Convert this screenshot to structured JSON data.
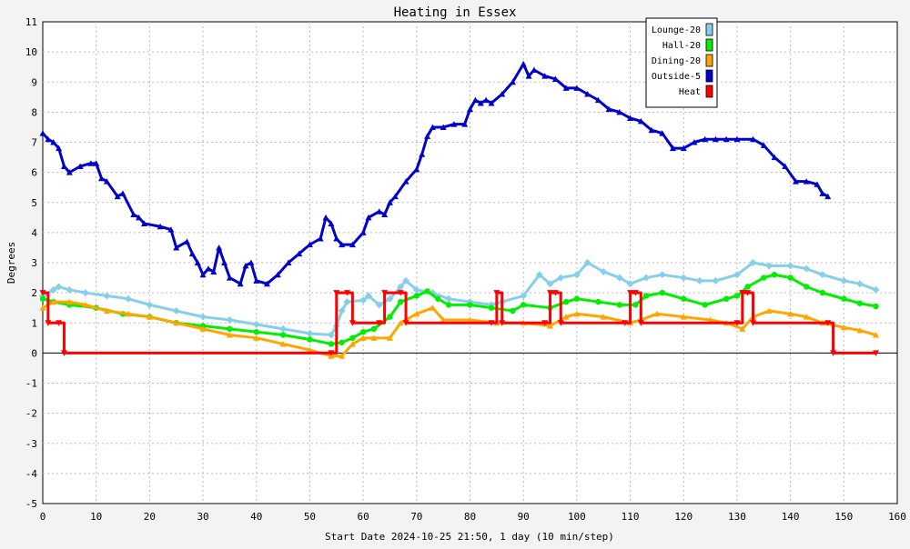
{
  "chart_data": {
    "type": "line",
    "title": "Heating in Essex",
    "xlabel": "Start Date 2024-10-25 21:50, 1 day (10 min/step)",
    "ylabel": "Degrees",
    "xlim": [
      0,
      160
    ],
    "ylim": [
      -5,
      11
    ],
    "x_ticks": [
      "0",
      "10",
      "20",
      "30",
      "40",
      "50",
      "60",
      "70",
      "80",
      "90",
      "100",
      "110",
      "120",
      "130",
      "140",
      "150",
      "160"
    ],
    "y_ticks": [
      "-5",
      "-4",
      "-3",
      "-2",
      "-1",
      "0",
      "1",
      "2",
      "3",
      "4",
      "5",
      "6",
      "7",
      "8",
      "9",
      "10",
      "11"
    ],
    "grid": true,
    "legend_position": "top-right",
    "colors": {
      "background": "#f3f3f3",
      "plot_background": "#ffffff",
      "grid": "#bbbbbb",
      "zero_line": "#000000"
    },
    "series": [
      {
        "name": "Lounge-20",
        "color": "#87ceeb",
        "marker": "diamond",
        "points": [
          [
            0,
            1.9
          ],
          [
            2,
            2.1
          ],
          [
            3,
            2.2
          ],
          [
            5,
            2.1
          ],
          [
            8,
            2.0
          ],
          [
            12,
            1.9
          ],
          [
            16,
            1.8
          ],
          [
            20,
            1.6
          ],
          [
            25,
            1.4
          ],
          [
            30,
            1.2
          ],
          [
            35,
            1.1
          ],
          [
            40,
            0.95
          ],
          [
            45,
            0.8
          ],
          [
            50,
            0.65
          ],
          [
            54,
            0.6
          ],
          [
            55,
            0.9
          ],
          [
            56,
            1.4
          ],
          [
            57,
            1.7
          ],
          [
            60,
            1.75
          ],
          [
            61,
            1.9
          ],
          [
            63,
            1.6
          ],
          [
            65,
            1.8
          ],
          [
            67,
            2.2
          ],
          [
            68,
            2.4
          ],
          [
            70,
            2.1
          ],
          [
            73,
            2.0
          ],
          [
            76,
            1.8
          ],
          [
            80,
            1.7
          ],
          [
            84,
            1.6
          ],
          [
            86,
            1.7
          ],
          [
            90,
            1.9
          ],
          [
            93,
            2.6
          ],
          [
            95,
            2.3
          ],
          [
            97,
            2.5
          ],
          [
            100,
            2.6
          ],
          [
            102,
            3.0
          ],
          [
            105,
            2.7
          ],
          [
            108,
            2.5
          ],
          [
            110,
            2.3
          ],
          [
            113,
            2.5
          ],
          [
            116,
            2.6
          ],
          [
            120,
            2.5
          ],
          [
            123,
            2.4
          ],
          [
            126,
            2.4
          ],
          [
            130,
            2.6
          ],
          [
            133,
            3.0
          ],
          [
            136,
            2.9
          ],
          [
            140,
            2.9
          ],
          [
            143,
            2.8
          ],
          [
            146,
            2.6
          ],
          [
            150,
            2.4
          ],
          [
            153,
            2.3
          ],
          [
            156,
            2.1
          ]
        ]
      },
      {
        "name": "Hall-20",
        "color": "#00ee00",
        "marker": "circle",
        "points": [
          [
            0,
            1.8
          ],
          [
            2,
            1.7
          ],
          [
            5,
            1.6
          ],
          [
            10,
            1.5
          ],
          [
            15,
            1.3
          ],
          [
            20,
            1.2
          ],
          [
            25,
            1.0
          ],
          [
            30,
            0.9
          ],
          [
            35,
            0.8
          ],
          [
            40,
            0.7
          ],
          [
            45,
            0.6
          ],
          [
            50,
            0.45
          ],
          [
            54,
            0.3
          ],
          [
            56,
            0.35
          ],
          [
            58,
            0.5
          ],
          [
            60,
            0.7
          ],
          [
            62,
            0.8
          ],
          [
            65,
            1.2
          ],
          [
            67,
            1.7
          ],
          [
            70,
            1.9
          ],
          [
            72,
            2.05
          ],
          [
            74,
            1.8
          ],
          [
            76,
            1.6
          ],
          [
            80,
            1.6
          ],
          [
            84,
            1.5
          ],
          [
            88,
            1.4
          ],
          [
            90,
            1.6
          ],
          [
            95,
            1.5
          ],
          [
            98,
            1.7
          ],
          [
            100,
            1.8
          ],
          [
            104,
            1.7
          ],
          [
            108,
            1.6
          ],
          [
            111,
            1.6
          ],
          [
            113,
            1.9
          ],
          [
            116,
            2.0
          ],
          [
            120,
            1.8
          ],
          [
            124,
            1.6
          ],
          [
            128,
            1.8
          ],
          [
            130,
            1.9
          ],
          [
            132,
            2.2
          ],
          [
            135,
            2.5
          ],
          [
            137,
            2.6
          ],
          [
            140,
            2.5
          ],
          [
            143,
            2.2
          ],
          [
            146,
            2.0
          ],
          [
            150,
            1.8
          ],
          [
            153,
            1.65
          ],
          [
            156,
            1.55
          ]
        ]
      },
      {
        "name": "Dining-20",
        "color": "#ffa500",
        "marker": "triangle",
        "points": [
          [
            0,
            1.5
          ],
          [
            2,
            1.7
          ],
          [
            5,
            1.7
          ],
          [
            8,
            1.6
          ],
          [
            12,
            1.4
          ],
          [
            16,
            1.3
          ],
          [
            20,
            1.2
          ],
          [
            25,
            1.0
          ],
          [
            30,
            0.8
          ],
          [
            35,
            0.6
          ],
          [
            40,
            0.5
          ],
          [
            45,
            0.3
          ],
          [
            50,
            0.1
          ],
          [
            54,
            -0.1
          ],
          [
            56,
            -0.1
          ],
          [
            58,
            0.3
          ],
          [
            60,
            0.5
          ],
          [
            62,
            0.5
          ],
          [
            65,
            0.5
          ],
          [
            67,
            1.0
          ],
          [
            70,
            1.3
          ],
          [
            73,
            1.5
          ],
          [
            75,
            1.1
          ],
          [
            80,
            1.1
          ],
          [
            85,
            1.0
          ],
          [
            90,
            1.0
          ],
          [
            95,
            0.9
          ],
          [
            98,
            1.2
          ],
          [
            100,
            1.3
          ],
          [
            105,
            1.2
          ],
          [
            110,
            1.0
          ],
          [
            112,
            1.1
          ],
          [
            115,
            1.3
          ],
          [
            120,
            1.2
          ],
          [
            125,
            1.1
          ],
          [
            128,
            1.0
          ],
          [
            131,
            0.8
          ],
          [
            133,
            1.2
          ],
          [
            136,
            1.4
          ],
          [
            140,
            1.3
          ],
          [
            143,
            1.2
          ],
          [
            146,
            1.0
          ],
          [
            150,
            0.85
          ],
          [
            153,
            0.75
          ],
          [
            156,
            0.6
          ]
        ]
      },
      {
        "name": "Outside-5",
        "color": "#0000cc",
        "marker": "triangle",
        "points": [
          [
            0,
            7.3
          ],
          [
            1,
            7.1
          ],
          [
            2,
            7.0
          ],
          [
            3,
            6.8
          ],
          [
            4,
            6.2
          ],
          [
            5,
            6.0
          ],
          [
            7,
            6.2
          ],
          [
            9,
            6.3
          ],
          [
            10,
            6.3
          ],
          [
            11,
            5.8
          ],
          [
            12,
            5.7
          ],
          [
            14,
            5.2
          ],
          [
            15,
            5.3
          ],
          [
            17,
            4.6
          ],
          [
            18,
            4.5
          ],
          [
            19,
            4.3
          ],
          [
            22,
            4.2
          ],
          [
            24,
            4.1
          ],
          [
            25,
            3.5
          ],
          [
            27,
            3.7
          ],
          [
            28,
            3.3
          ],
          [
            29,
            3.0
          ],
          [
            30,
            2.6
          ],
          [
            31,
            2.8
          ],
          [
            32,
            2.7
          ],
          [
            33,
            3.5
          ],
          [
            34,
            3.0
          ],
          [
            35,
            2.5
          ],
          [
            37,
            2.3
          ],
          [
            38,
            2.9
          ],
          [
            39,
            3.0
          ],
          [
            40,
            2.4
          ],
          [
            42,
            2.3
          ],
          [
            44,
            2.6
          ],
          [
            46,
            3.0
          ],
          [
            48,
            3.3
          ],
          [
            50,
            3.6
          ],
          [
            52,
            3.8
          ],
          [
            53,
            4.5
          ],
          [
            54,
            4.3
          ],
          [
            55,
            3.8
          ],
          [
            56,
            3.6
          ],
          [
            58,
            3.6
          ],
          [
            60,
            4.0
          ],
          [
            61,
            4.5
          ],
          [
            63,
            4.7
          ],
          [
            64,
            4.6
          ],
          [
            65,
            5.0
          ],
          [
            66,
            5.2
          ],
          [
            68,
            5.7
          ],
          [
            70,
            6.1
          ],
          [
            71,
            6.6
          ],
          [
            72,
            7.2
          ],
          [
            73,
            7.5
          ],
          [
            75,
            7.5
          ],
          [
            77,
            7.6
          ],
          [
            79,
            7.6
          ],
          [
            80,
            8.1
          ],
          [
            81,
            8.4
          ],
          [
            82,
            8.3
          ],
          [
            83,
            8.4
          ],
          [
            84,
            8.3
          ],
          [
            86,
            8.6
          ],
          [
            88,
            9.0
          ],
          [
            90,
            9.6
          ],
          [
            91,
            9.2
          ],
          [
            92,
            9.4
          ],
          [
            94,
            9.2
          ],
          [
            96,
            9.1
          ],
          [
            98,
            8.8
          ],
          [
            100,
            8.8
          ],
          [
            102,
            8.6
          ],
          [
            104,
            8.4
          ],
          [
            106,
            8.1
          ],
          [
            108,
            8.0
          ],
          [
            110,
            7.8
          ],
          [
            112,
            7.7
          ],
          [
            114,
            7.4
          ],
          [
            116,
            7.3
          ],
          [
            118,
            6.8
          ],
          [
            120,
            6.8
          ],
          [
            122,
            7.0
          ],
          [
            124,
            7.1
          ],
          [
            126,
            7.1
          ],
          [
            128,
            7.1
          ],
          [
            130,
            7.1
          ],
          [
            133,
            7.1
          ],
          [
            135,
            6.9
          ],
          [
            137,
            6.5
          ],
          [
            139,
            6.2
          ],
          [
            141,
            5.7
          ],
          [
            143,
            5.7
          ],
          [
            145,
            5.6
          ],
          [
            146,
            5.3
          ],
          [
            147,
            5.2
          ]
        ]
      },
      {
        "name": "Heat",
        "color": "#ff0000",
        "marker": "triangle-down",
        "points": [
          [
            0,
            2
          ],
          [
            1,
            1
          ],
          [
            3,
            1
          ],
          [
            4,
            0
          ],
          [
            54,
            0
          ],
          [
            55,
            2
          ],
          [
            57,
            2
          ],
          [
            58,
            1
          ],
          [
            63,
            1
          ],
          [
            64,
            2
          ],
          [
            67,
            2
          ],
          [
            68,
            1
          ],
          [
            84,
            1
          ],
          [
            85,
            2
          ],
          [
            86,
            1
          ],
          [
            94,
            1
          ],
          [
            95,
            2
          ],
          [
            96,
            2
          ],
          [
            97,
            1
          ],
          [
            109,
            1
          ],
          [
            110,
            2
          ],
          [
            111,
            2
          ],
          [
            112,
            1
          ],
          [
            130,
            1
          ],
          [
            131,
            2
          ],
          [
            132,
            2
          ],
          [
            133,
            1
          ],
          [
            147,
            1
          ],
          [
            148,
            0
          ],
          [
            156,
            0
          ]
        ]
      }
    ]
  }
}
